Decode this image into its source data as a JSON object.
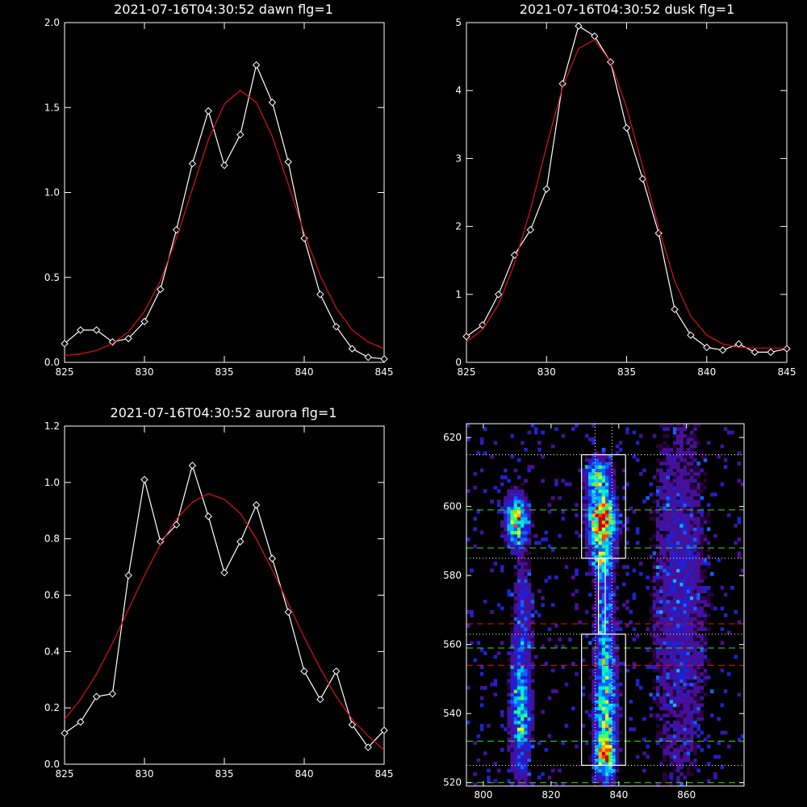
{
  "chart_data": [
    {
      "type": "line",
      "title": "2021-07-16T04:30:52 dawn flg=1",
      "xlim": [
        825,
        845
      ],
      "ylim": [
        0,
        2.0
      ],
      "xticks": [
        "825",
        "830",
        "835",
        "840",
        "845"
      ],
      "yticks": [
        "0.0",
        "0.5",
        "1.0",
        "1.5",
        "2.0"
      ],
      "series": [
        {
          "color": "#ffffff",
          "marker": "diamond",
          "x": [
            825,
            826,
            827,
            828,
            829,
            830,
            831,
            832,
            833,
            834,
            835,
            836,
            837,
            838,
            839,
            840,
            841,
            842,
            843,
            844,
            845
          ],
          "y": [
            0.11,
            0.19,
            0.19,
            0.12,
            0.14,
            0.24,
            0.43,
            0.78,
            1.17,
            1.48,
            1.16,
            1.34,
            1.75,
            1.53,
            1.18,
            0.73,
            0.4,
            0.21,
            0.08,
            0.03,
            0.02
          ]
        },
        {
          "color": "#e01010",
          "marker": "none",
          "x": [
            825,
            826,
            827,
            828,
            829,
            830,
            831,
            832,
            833,
            834,
            835,
            836,
            837,
            838,
            839,
            840,
            841,
            842,
            843,
            844,
            845
          ],
          "y": [
            0.04,
            0.05,
            0.07,
            0.11,
            0.18,
            0.3,
            0.48,
            0.73,
            1.02,
            1.31,
            1.52,
            1.6,
            1.53,
            1.33,
            1.05,
            0.76,
            0.51,
            0.32,
            0.19,
            0.12,
            0.08
          ]
        }
      ]
    },
    {
      "type": "line",
      "title": "2021-07-16T04:30:52 dusk flg=1",
      "xlim": [
        825,
        845
      ],
      "ylim": [
        0,
        5
      ],
      "xticks": [
        "825",
        "830",
        "835",
        "840",
        "845"
      ],
      "yticks": [
        "0",
        "1",
        "2",
        "3",
        "4",
        "5"
      ],
      "series": [
        {
          "color": "#ffffff",
          "marker": "diamond",
          "x": [
            825,
            826,
            827,
            828,
            829,
            830,
            831,
            832,
            833,
            834,
            835,
            836,
            837,
            838,
            839,
            840,
            841,
            842,
            843,
            844,
            845
          ],
          "y": [
            0.38,
            0.55,
            1.0,
            1.58,
            1.95,
            2.55,
            4.1,
            4.95,
            4.8,
            4.42,
            3.45,
            2.7,
            1.9,
            0.78,
            0.4,
            0.22,
            0.18,
            0.27,
            0.15,
            0.15,
            0.2
          ],
          "note": ""
        },
        {
          "color": "#e01010",
          "marker": "none",
          "x": [
            825,
            826,
            827,
            828,
            829,
            830,
            831,
            832,
            833,
            834,
            835,
            836,
            837,
            838,
            839,
            840,
            841,
            842,
            843,
            844,
            845
          ],
          "y": [
            0.3,
            0.48,
            0.85,
            1.45,
            2.25,
            3.18,
            4.05,
            4.62,
            4.75,
            4.42,
            3.75,
            2.88,
            1.98,
            1.2,
            0.68,
            0.4,
            0.27,
            0.22,
            0.21,
            0.21,
            0.21
          ]
        }
      ]
    },
    {
      "type": "line",
      "title": "2021-07-16T04:30:52 aurora flg=1",
      "xlim": [
        825,
        845
      ],
      "ylim": [
        0,
        1.2
      ],
      "xticks": [
        "825",
        "830",
        "835",
        "840",
        "845"
      ],
      "yticks": [
        "0.0",
        "0.2",
        "0.4",
        "0.6",
        "0.8",
        "1.0",
        "1.2"
      ],
      "series": [
        {
          "color": "#ffffff",
          "marker": "diamond",
          "x": [
            825,
            826,
            827,
            828,
            829,
            830,
            831,
            832,
            833,
            834,
            835,
            836,
            837,
            838,
            839,
            840,
            841,
            842,
            843,
            844,
            845
          ],
          "y": [
            0.11,
            0.15,
            0.24,
            0.25,
            0.67,
            1.01,
            0.79,
            0.85,
            1.06,
            0.88,
            0.68,
            0.79,
            0.92,
            0.73,
            0.54,
            0.33,
            0.23,
            0.33,
            0.14,
            0.06,
            0.12
          ]
        },
        {
          "color": "#e01010",
          "marker": "none",
          "x": [
            825,
            826,
            827,
            828,
            829,
            830,
            831,
            832,
            833,
            834,
            835,
            836,
            837,
            838,
            839,
            840,
            841,
            842,
            843,
            844,
            845
          ],
          "y": [
            0.16,
            0.23,
            0.32,
            0.43,
            0.55,
            0.67,
            0.78,
            0.87,
            0.93,
            0.96,
            0.94,
            0.89,
            0.8,
            0.69,
            0.57,
            0.45,
            0.34,
            0.24,
            0.16,
            0.1,
            0.05
          ]
        }
      ]
    },
    {
      "type": "heatmap",
      "title": "",
      "xlim": [
        795,
        877
      ],
      "ylim": [
        519,
        624
      ],
      "xticks": [
        "800",
        "820",
        "840",
        "860"
      ],
      "yticks": [
        "520",
        "540",
        "560",
        "580",
        "600",
        "620"
      ],
      "colors": [
        "#2a0040",
        "#45109a",
        "#2020d0",
        "#1060ff",
        "#00b8ff",
        "#00f0d0",
        "#40ff60",
        "#d8ff20",
        "#ffb000",
        "#ff4000",
        "#c80000"
      ],
      "blobs": [
        {
          "cx": 810,
          "cy": 596,
          "sx": 2.2,
          "sy": 5.0,
          "peak": 0.62
        },
        {
          "cx": 835,
          "cy": 596,
          "sx": 2.6,
          "sy": 5.0,
          "peak": 1.0
        },
        {
          "cx": 834,
          "cy": 609,
          "sx": 2.4,
          "sy": 3.5,
          "peak": 0.55
        },
        {
          "cx": 835,
          "cy": 584,
          "sx": 2.2,
          "sy": 3.0,
          "peak": 0.4
        },
        {
          "cx": 811,
          "cy": 541,
          "sx": 2.0,
          "sy": 13.0,
          "peak": 0.45
        },
        {
          "cx": 836,
          "cy": 542,
          "sx": 2.2,
          "sy": 15.0,
          "peak": 0.55
        },
        {
          "cx": 836,
          "cy": 528,
          "sx": 1.8,
          "sy": 3.0,
          "peak": 0.55
        },
        {
          "cx": 812,
          "cy": 571,
          "sx": 2.0,
          "sy": 9.0,
          "peak": 0.2
        },
        {
          "cx": 836,
          "cy": 571,
          "sx": 2.0,
          "sy": 9.0,
          "peak": 0.22
        },
        {
          "cx": 858,
          "cy": 575,
          "sx": 6.0,
          "sy": 40.0,
          "peak": 0.18
        }
      ],
      "boxes": [
        {
          "x0": 829,
          "x1": 842,
          "y0": 585,
          "y1": 615
        },
        {
          "x0": 834,
          "x1": 836,
          "y0": 563,
          "y1": 585
        },
        {
          "x0": 829,
          "x1": 842,
          "y0": 525,
          "y1": 563
        }
      ],
      "hlines": [
        {
          "y": 615,
          "color": "#ffffff",
          "style": "dotted"
        },
        {
          "y": 599,
          "color": "#30e030",
          "style": "dashed"
        },
        {
          "y": 588,
          "color": "#30e030",
          "style": "dashed"
        },
        {
          "y": 585,
          "color": "#ffffff",
          "style": "dotted"
        },
        {
          "y": 566,
          "color": "#e01010",
          "style": "dashed"
        },
        {
          "y": 563,
          "color": "#ffffff",
          "style": "dotted"
        },
        {
          "y": 559,
          "color": "#30e030",
          "style": "dashed"
        },
        {
          "y": 554,
          "color": "#e01010",
          "style": "dashed"
        },
        {
          "y": 532,
          "color": "#30e030",
          "style": "dashed"
        },
        {
          "y": 525,
          "color": "#ffffff",
          "style": "dotted"
        },
        {
          "y": 520,
          "color": "#30e030",
          "style": "dashed"
        }
      ],
      "vlines": [
        {
          "x": 833,
          "color": "#ffffff",
          "style": "dotted"
        },
        {
          "x": 838,
          "color": "#ffffff",
          "style": "dotted"
        }
      ]
    }
  ]
}
